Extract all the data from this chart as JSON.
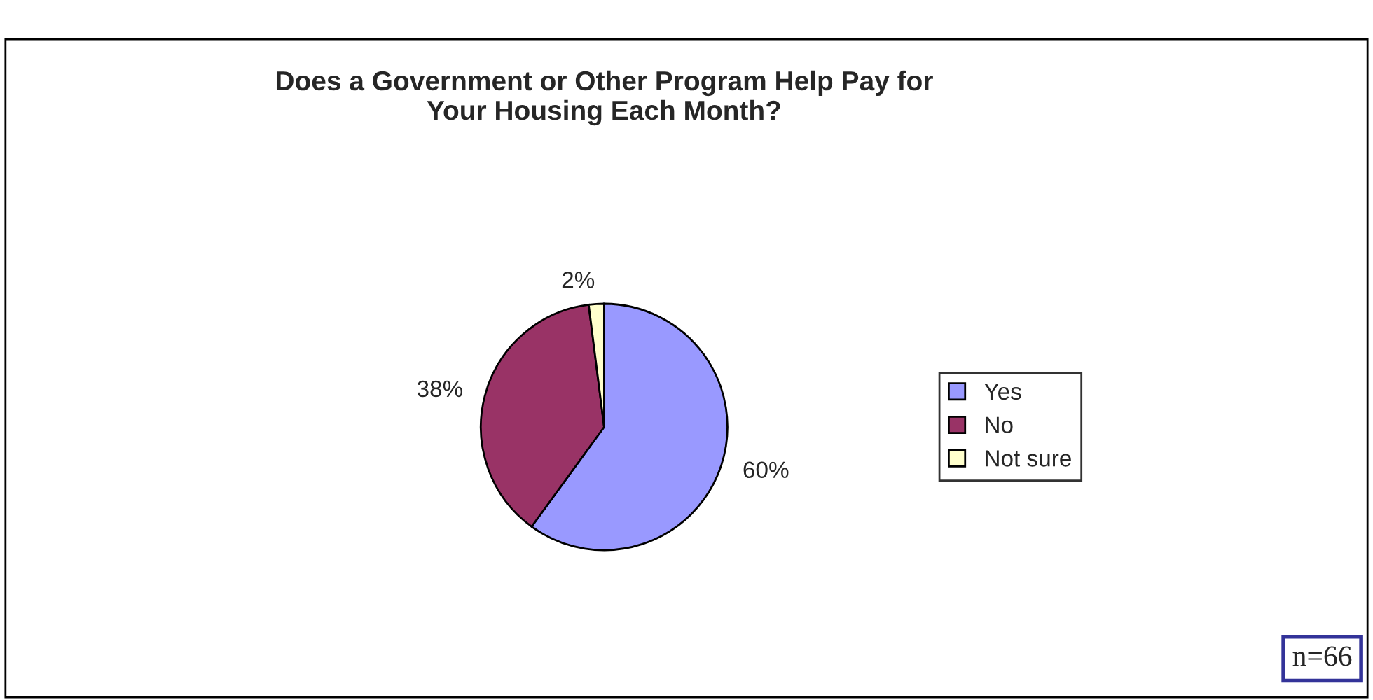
{
  "chart_data": {
    "type": "pie",
    "title": "Does a Government or Other Program Help Pay for\nYour Housing Each Month?",
    "categories": [
      "Yes",
      "No",
      "Not sure"
    ],
    "values": [
      60,
      38,
      2
    ],
    "colors": [
      "#9999ff",
      "#993366",
      "#ffffcc"
    ],
    "value_labels": [
      "60%",
      "38%",
      "2%"
    ],
    "legend": "right",
    "annotations": [
      "n=66"
    ]
  }
}
